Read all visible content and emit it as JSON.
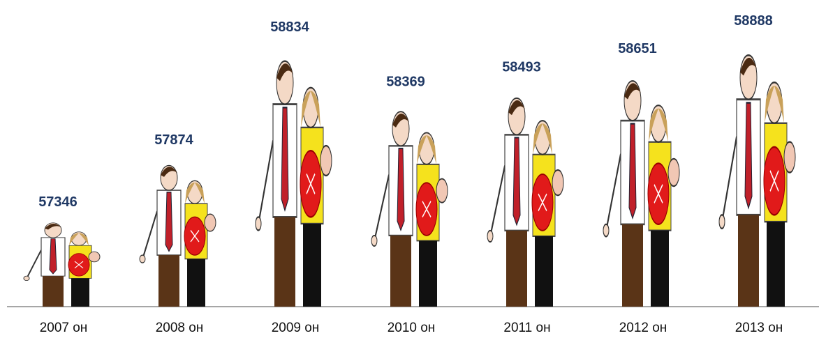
{
  "chart_data": {
    "type": "bar",
    "categories": [
      "2007 он",
      "2008 он",
      "2009 он",
      "2010 он",
      "2011 он",
      "2012 он",
      "2013 он"
    ],
    "values": [
      57346,
      57874,
      58834,
      58369,
      58493,
      58651,
      58888
    ]
  }
}
